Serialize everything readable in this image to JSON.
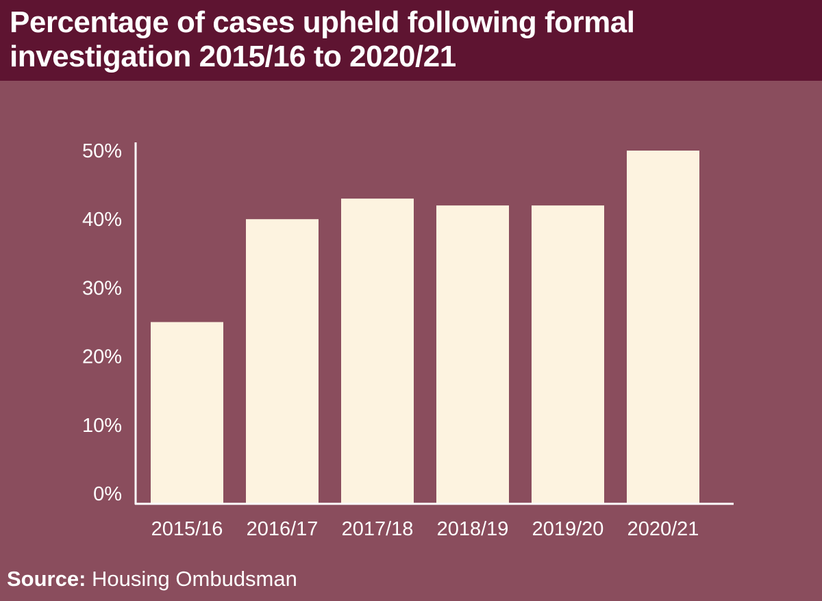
{
  "header": {
    "title": "Percentage of cases upheld following formal investigation 2015/16 to 2020/21"
  },
  "chart_data": {
    "type": "bar",
    "title": "Percentage of cases upheld following formal investigation 2015/16 to 2020/21",
    "categories": [
      "2015/16",
      "2016/17",
      "2017/18",
      "2018/19",
      "2019/20",
      "2020/21"
    ],
    "values": [
      25,
      40,
      43,
      42,
      42,
      50
    ],
    "ylim": [
      0,
      50
    ],
    "yticks": [
      "0%",
      "10%",
      "20%",
      "30%",
      "40%",
      "50%"
    ],
    "xlabel": "",
    "ylabel": "",
    "grid": false,
    "colors": {
      "bar": "#fdf3e0",
      "background": "#8a4d5d",
      "header": "#5e1431"
    }
  },
  "source": {
    "label": "Source:",
    "text": "Housing Ombudsman"
  }
}
